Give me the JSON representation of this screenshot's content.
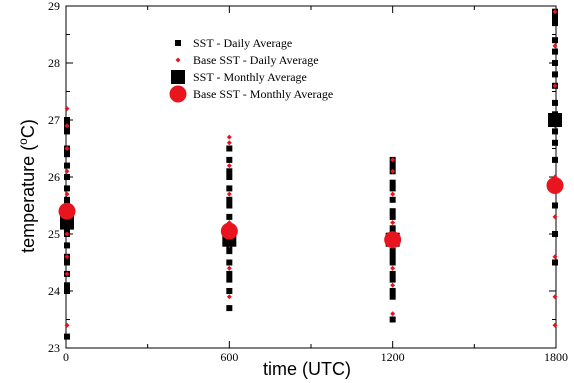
{
  "chart_data": {
    "type": "scatter",
    "xlabel": "time (UTC)",
    "ylabel_main": "temperature (",
    "ylabel_sup": "o",
    "ylabel_end": "C)",
    "xlim": [
      0,
      1800
    ],
    "ylim": [
      23,
      29
    ],
    "x_major_ticks": [
      0,
      600,
      1200,
      1800
    ],
    "x_minor_ticks": [
      300,
      900,
      1500
    ],
    "y_major_ticks": [
      23,
      24,
      25,
      26,
      27,
      28,
      29
    ],
    "grid": false,
    "legend_placement": "top-center",
    "colors": {
      "sst": "#000000",
      "base": "#e8141e"
    },
    "series": [
      {
        "name": "SST - Daily Average",
        "marker": "small-square",
        "color": "#000000",
        "points": [
          [
            0,
            23.2
          ],
          [
            0,
            24.0
          ],
          [
            0,
            24.1
          ],
          [
            0,
            24.3
          ],
          [
            0,
            24.5
          ],
          [
            0,
            24.6
          ],
          [
            0,
            24.8
          ],
          [
            0,
            25.0
          ],
          [
            0,
            25.1
          ],
          [
            0,
            25.2
          ],
          [
            0,
            25.3
          ],
          [
            0,
            25.5
          ],
          [
            0,
            25.6
          ],
          [
            0,
            25.8
          ],
          [
            0,
            26.0
          ],
          [
            0,
            26.2
          ],
          [
            0,
            26.4
          ],
          [
            0,
            26.5
          ],
          [
            0,
            26.8
          ],
          [
            0,
            26.9
          ],
          [
            0,
            27.0
          ],
          [
            600,
            23.7
          ],
          [
            600,
            24.0
          ],
          [
            600,
            24.2
          ],
          [
            600,
            24.3
          ],
          [
            600,
            24.5
          ],
          [
            600,
            24.7
          ],
          [
            600,
            24.8
          ],
          [
            600,
            24.9
          ],
          [
            600,
            25.0
          ],
          [
            600,
            25.1
          ],
          [
            600,
            25.3
          ],
          [
            600,
            25.5
          ],
          [
            600,
            25.6
          ],
          [
            600,
            25.8
          ],
          [
            600,
            26.0
          ],
          [
            600,
            26.1
          ],
          [
            600,
            26.3
          ],
          [
            600,
            26.5
          ],
          [
            1200,
            23.5
          ],
          [
            1200,
            23.9
          ],
          [
            1200,
            24.0
          ],
          [
            1200,
            24.2
          ],
          [
            1200,
            24.3
          ],
          [
            1200,
            24.5
          ],
          [
            1200,
            24.6
          ],
          [
            1200,
            24.7
          ],
          [
            1200,
            24.9
          ],
          [
            1200,
            25.0
          ],
          [
            1200,
            25.1
          ],
          [
            1200,
            25.3
          ],
          [
            1200,
            25.4
          ],
          [
            1200,
            25.6
          ],
          [
            1200,
            25.8
          ],
          [
            1200,
            25.9
          ],
          [
            1200,
            26.1
          ],
          [
            1200,
            26.2
          ],
          [
            1200,
            26.3
          ],
          [
            1800,
            24.5
          ],
          [
            1800,
            25.0
          ],
          [
            1800,
            25.5
          ],
          [
            1800,
            25.9
          ],
          [
            1800,
            26.3
          ],
          [
            1800,
            26.6
          ],
          [
            1800,
            26.8
          ],
          [
            1800,
            27.1
          ],
          [
            1800,
            27.3
          ],
          [
            1800,
            27.6
          ],
          [
            1800,
            27.8
          ],
          [
            1800,
            28.0
          ],
          [
            1800,
            28.2
          ],
          [
            1800,
            28.4
          ],
          [
            1800,
            28.7
          ],
          [
            1800,
            28.8
          ],
          [
            1800,
            28.9
          ]
        ]
      },
      {
        "name": "Base SST - Daily Average",
        "marker": "small-diamond",
        "color": "#e8141e",
        "points": [
          [
            0,
            23.4
          ],
          [
            0,
            24.3
          ],
          [
            0,
            24.6
          ],
          [
            0,
            25.0
          ],
          [
            0,
            25.4
          ],
          [
            0,
            25.7
          ],
          [
            0,
            26.1
          ],
          [
            0,
            26.5
          ],
          [
            0,
            26.9
          ],
          [
            0,
            27.2
          ],
          [
            600,
            23.9
          ],
          [
            600,
            24.4
          ],
          [
            600,
            24.8
          ],
          [
            600,
            25.2
          ],
          [
            600,
            25.7
          ],
          [
            600,
            26.2
          ],
          [
            600,
            26.6
          ],
          [
            600,
            26.7
          ],
          [
            1200,
            23.6
          ],
          [
            1200,
            24.1
          ],
          [
            1200,
            24.4
          ],
          [
            1200,
            24.8
          ],
          [
            1200,
            25.2
          ],
          [
            1200,
            25.7
          ],
          [
            1200,
            26.1
          ],
          [
            1200,
            26.3
          ],
          [
            1800,
            23.4
          ],
          [
            1800,
            23.9
          ],
          [
            1800,
            24.6
          ],
          [
            1800,
            25.3
          ],
          [
            1800,
            26.0
          ],
          [
            1800,
            26.9
          ],
          [
            1800,
            27.6
          ],
          [
            1800,
            28.3
          ],
          [
            1800,
            28.9
          ]
        ]
      },
      {
        "name": "SST - Monthly Average",
        "marker": "large-square",
        "color": "#000000",
        "points": [
          [
            0,
            25.2
          ],
          [
            600,
            24.9
          ],
          [
            1200,
            24.9
          ],
          [
            1800,
            27.0
          ]
        ]
      },
      {
        "name": "Base SST - Monthly Average",
        "marker": "large-circle",
        "color": "#e8141e",
        "points": [
          [
            0,
            25.4
          ],
          [
            600,
            25.05
          ],
          [
            1200,
            24.9
          ],
          [
            1800,
            25.85
          ]
        ]
      }
    ]
  }
}
